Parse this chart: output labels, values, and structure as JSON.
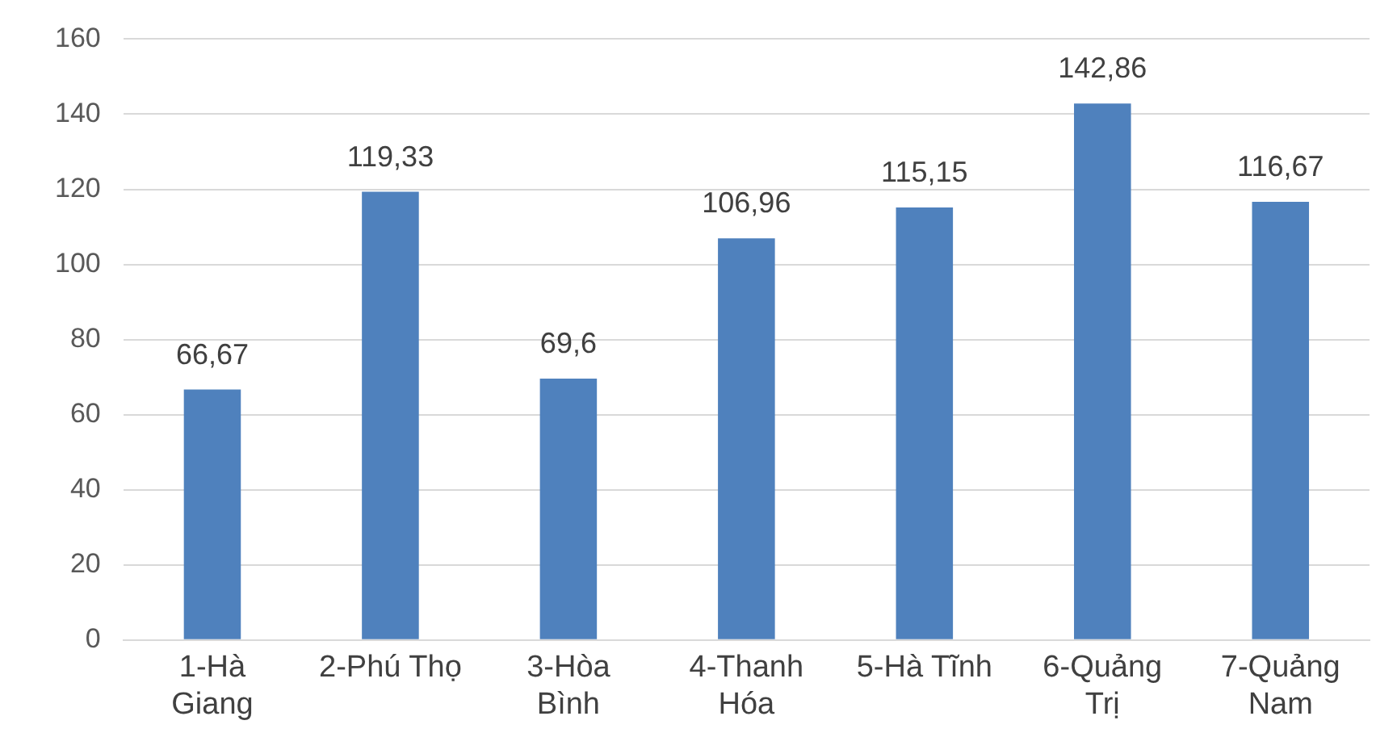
{
  "chart_data": {
    "type": "bar",
    "categories": [
      "1-Hà\nGiang",
      "2-Phú Thọ",
      "3-Hòa\nBình",
      "4-Thanh\nHóa",
      "5-Hà Tĩnh",
      "6-Quảng\nTrị",
      "7-Quảng\nNam"
    ],
    "values": [
      66.67,
      119.33,
      69.6,
      106.96,
      115.15,
      142.86,
      116.67
    ],
    "value_labels": [
      "66,67",
      "119,33",
      "69,6",
      "106,96",
      "115,15",
      "142,86",
      "116,67"
    ],
    "color": "#4f81bd",
    "ylim": [
      0,
      160
    ],
    "yticks": [
      0,
      20,
      40,
      60,
      80,
      100,
      120,
      140,
      160
    ],
    "grid": "y",
    "legend": false
  }
}
